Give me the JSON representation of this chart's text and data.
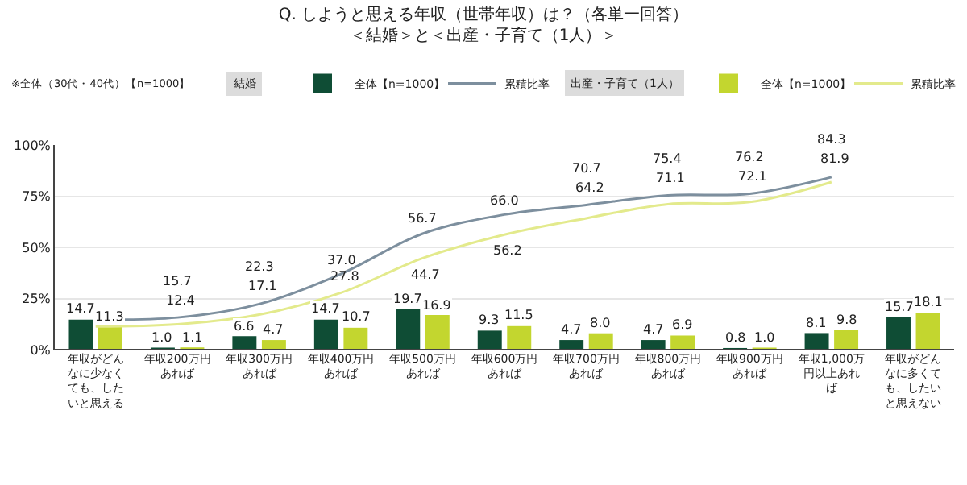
{
  "chart_data": {
    "type": "bar",
    "title": "Q. しようと思える年収（世帯年収）は？（各単一回答）",
    "subtitle": "＜結婚＞と＜出産・子育て（1人）＞",
    "annotations": [
      "※全体（30代・40代）【n=1000】",
      "結婚",
      "出産・子育て（1人）"
    ],
    "categories": [
      "年収がどんなに少なくても、したいと思える",
      "年収200万円あれば",
      "年収300万円あれば",
      "年収400万円あれば",
      "年収500万円あれば",
      "年収600万円あれば",
      "年収700万円あれば",
      "年収800万円あれば",
      "年収900万円あれば",
      "年収1,000万円以上あれば",
      "年収がどんなに多くても、したいと思えない"
    ],
    "series": [
      {
        "name": "全体【n=1000】",
        "color": "#0f4d35",
        "values": [
          14.7,
          1.0,
          6.6,
          14.7,
          19.7,
          9.3,
          4.7,
          4.7,
          0.8,
          8.1,
          15.7
        ],
        "value_labels": [
          "14.7",
          "1.0",
          "6.6",
          "14.7",
          "19.7",
          "9.3",
          "4.7",
          "4.7",
          "0.8",
          "8.1",
          "15.7"
        ]
      },
      {
        "name": "累積比率",
        "type": "line",
        "color": "#7d8f9e",
        "values": [
          14.7,
          15.7,
          22.3,
          37.0,
          56.7,
          66.0,
          70.7,
          75.4,
          76.2,
          84.3,
          null
        ],
        "value_labels": [
          null,
          "15.7",
          "22.3",
          "37.0",
          "56.7",
          "66.0",
          "70.7",
          "75.4",
          "76.2",
          "84.3",
          null
        ]
      },
      {
        "name": "全体【n=1000】",
        "color": "#c3d62f",
        "values": [
          11.3,
          1.1,
          4.7,
          10.7,
          16.9,
          11.5,
          8.0,
          6.9,
          1.0,
          9.8,
          18.1
        ],
        "value_labels": [
          "11.3",
          "1.1",
          "4.7",
          "10.7",
          "16.9",
          "11.5",
          "8.0",
          "6.9",
          "1.0",
          "9.8",
          "18.1"
        ]
      },
      {
        "name": "累積比率",
        "type": "line",
        "color": "#e3ea8c",
        "values": [
          11.3,
          12.4,
          17.1,
          27.8,
          44.7,
          56.2,
          64.2,
          71.1,
          72.1,
          81.9,
          null
        ],
        "value_labels": [
          null,
          "12.4",
          "17.1",
          "27.8",
          "44.7",
          "56.2",
          "64.2",
          "71.1",
          "72.1",
          "81.9",
          null
        ]
      }
    ],
    "ylim": [
      0,
      100
    ],
    "yticks": [
      {
        "value": 0,
        "label": "0%"
      },
      {
        "value": 25,
        "label": "25%"
      },
      {
        "value": 50,
        "label": "50%"
      },
      {
        "value": 75,
        "label": "75%"
      },
      {
        "value": 100,
        "label": "100%"
      }
    ],
    "grid": "y",
    "legend": "top"
  }
}
